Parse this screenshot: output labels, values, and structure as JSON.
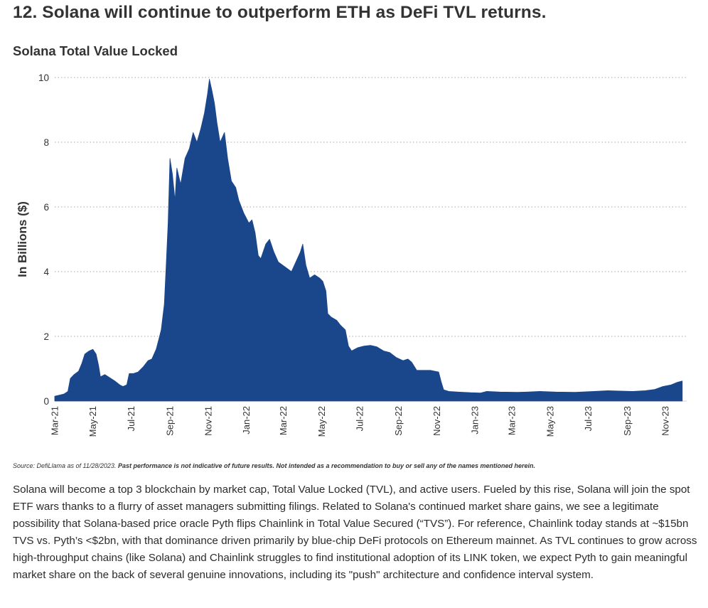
{
  "headline": "12. Solana will continue to outperform ETH as DeFi TVL returns.",
  "source_prefix": "Source: DefiLlama as of 11/28/2023. ",
  "source_disclaimer": "Past performance is not indicative of future results. Not intended as a recommendation to buy or sell any of the names mentioned herein.",
  "body": "Solana will become a top 3 blockchain by market cap, Total Value Locked (TVL), and active users. Fueled by this rise, Solana will join the spot ETF wars thanks to a flurry of asset managers submitting filings. Related to Solana's continued market share gains, we see a legitimate possibility that Solana-based price oracle Pyth flips Chainlink in Total Value Secured (“TVS”). For reference, Chainlink today stands at ~$15bn TVS vs. Pyth’s <$2bn, with that dominance driven primarily by blue-chip DeFi protocols on Ethereum mainnet. As TVL continues to grow across high-throughput chains (like Solana) and Chainlink struggles to find institutional adoption of its LINK token, we expect Pyth to gain meaningful market share on the back of several genuine innovations, including its \"push\" architecture and confidence interval system.",
  "colors": {
    "area": "#1a468c",
    "grid": "#a6a6a6",
    "text": "#333333"
  },
  "chart_data": {
    "type": "area",
    "title": "Solana Total Value Locked",
    "ylabel": "In Billions ($)",
    "xlabel": "",
    "ylim": [
      0,
      10
    ],
    "yticks": [
      0,
      2,
      4,
      6,
      8,
      10
    ],
    "grid": true,
    "xlim": [
      "2021-03-01",
      "2023-12-05"
    ],
    "xticks": [
      {
        "label": "Mar-21",
        "date": "2021-03-01"
      },
      {
        "label": "May-21",
        "date": "2021-05-01"
      },
      {
        "label": "Jul-21",
        "date": "2021-07-01"
      },
      {
        "label": "Sep-21",
        "date": "2021-09-01"
      },
      {
        "label": "Nov-21",
        "date": "2021-11-01"
      },
      {
        "label": "Jan-22",
        "date": "2022-01-01"
      },
      {
        "label": "Mar-22",
        "date": "2022-03-01"
      },
      {
        "label": "May-22",
        "date": "2022-05-01"
      },
      {
        "label": "Jul-22",
        "date": "2022-07-01"
      },
      {
        "label": "Sep-22",
        "date": "2022-09-01"
      },
      {
        "label": "Nov-22",
        "date": "2022-11-01"
      },
      {
        "label": "Jan-23",
        "date": "2023-01-01"
      },
      {
        "label": "Mar-23",
        "date": "2023-03-01"
      },
      {
        "label": "May-23",
        "date": "2023-05-01"
      },
      {
        "label": "Jul-23",
        "date": "2023-07-01"
      },
      {
        "label": "Sep-23",
        "date": "2023-09-01"
      },
      {
        "label": "Nov-23",
        "date": "2023-11-01"
      }
    ],
    "series": [
      {
        "points": [
          [
            "2021-03-01",
            0.15
          ],
          [
            "2021-03-08",
            0.18
          ],
          [
            "2021-03-16",
            0.22
          ],
          [
            "2021-03-22",
            0.3
          ],
          [
            "2021-03-26",
            0.7
          ],
          [
            "2021-04-01",
            0.82
          ],
          [
            "2021-04-08",
            0.92
          ],
          [
            "2021-04-13",
            1.15
          ],
          [
            "2021-04-18",
            1.45
          ],
          [
            "2021-04-25",
            1.55
          ],
          [
            "2021-05-01",
            1.6
          ],
          [
            "2021-05-06",
            1.45
          ],
          [
            "2021-05-10",
            1.1
          ],
          [
            "2021-05-13",
            0.75
          ],
          [
            "2021-05-20",
            0.82
          ],
          [
            "2021-05-28",
            0.72
          ],
          [
            "2021-06-05",
            0.62
          ],
          [
            "2021-06-13",
            0.5
          ],
          [
            "2021-06-18",
            0.45
          ],
          [
            "2021-06-24",
            0.5
          ],
          [
            "2021-06-28",
            0.85
          ],
          [
            "2021-07-05",
            0.85
          ],
          [
            "2021-07-12",
            0.9
          ],
          [
            "2021-07-20",
            1.05
          ],
          [
            "2021-07-28",
            1.25
          ],
          [
            "2021-08-03",
            1.3
          ],
          [
            "2021-08-10",
            1.6
          ],
          [
            "2021-08-14",
            1.9
          ],
          [
            "2021-08-18",
            2.2
          ],
          [
            "2021-08-23",
            3.0
          ],
          [
            "2021-08-26",
            4.2
          ],
          [
            "2021-08-29",
            5.5
          ],
          [
            "2021-09-01",
            7.5
          ],
          [
            "2021-09-05",
            7.0
          ],
          [
            "2021-09-09",
            6.2
          ],
          [
            "2021-09-12",
            7.2
          ],
          [
            "2021-09-18",
            6.7
          ],
          [
            "2021-09-25",
            7.5
          ],
          [
            "2021-10-02",
            7.8
          ],
          [
            "2021-10-08",
            8.3
          ],
          [
            "2021-10-14",
            8.0
          ],
          [
            "2021-10-20",
            8.4
          ],
          [
            "2021-10-26",
            8.9
          ],
          [
            "2021-10-31",
            9.5
          ],
          [
            "2021-11-03",
            9.95
          ],
          [
            "2021-11-07",
            9.6
          ],
          [
            "2021-11-11",
            9.2
          ],
          [
            "2021-11-15",
            8.6
          ],
          [
            "2021-11-20",
            8.0
          ],
          [
            "2021-11-27",
            8.3
          ],
          [
            "2021-12-02",
            7.5
          ],
          [
            "2021-12-08",
            6.8
          ],
          [
            "2021-12-15",
            6.6
          ],
          [
            "2021-12-20",
            6.2
          ],
          [
            "2021-12-28",
            5.8
          ],
          [
            "2022-01-05",
            5.5
          ],
          [
            "2022-01-10",
            5.6
          ],
          [
            "2022-01-15",
            5.2
          ],
          [
            "2022-01-20",
            4.5
          ],
          [
            "2022-01-24",
            4.4
          ],
          [
            "2022-02-01",
            4.85
          ],
          [
            "2022-02-07",
            5.0
          ],
          [
            "2022-02-14",
            4.6
          ],
          [
            "2022-02-21",
            4.3
          ],
          [
            "2022-02-28",
            4.2
          ],
          [
            "2022-03-07",
            4.1
          ],
          [
            "2022-03-14",
            4.0
          ],
          [
            "2022-03-21",
            4.3
          ],
          [
            "2022-03-28",
            4.6
          ],
          [
            "2022-04-01",
            4.85
          ],
          [
            "2022-04-06",
            4.2
          ],
          [
            "2022-04-12",
            3.8
          ],
          [
            "2022-04-20",
            3.9
          ],
          [
            "2022-04-28",
            3.8
          ],
          [
            "2022-05-03",
            3.7
          ],
          [
            "2022-05-08",
            3.4
          ],
          [
            "2022-05-11",
            2.7
          ],
          [
            "2022-05-16",
            2.6
          ],
          [
            "2022-05-25",
            2.5
          ],
          [
            "2022-05-31",
            2.35
          ],
          [
            "2022-06-08",
            2.2
          ],
          [
            "2022-06-13",
            1.7
          ],
          [
            "2022-06-18",
            1.55
          ],
          [
            "2022-06-28",
            1.65
          ],
          [
            "2022-07-08",
            1.7
          ],
          [
            "2022-07-18",
            1.72
          ],
          [
            "2022-07-28",
            1.68
          ],
          [
            "2022-08-08",
            1.55
          ],
          [
            "2022-08-18",
            1.5
          ],
          [
            "2022-08-28",
            1.35
          ],
          [
            "2022-09-08",
            1.25
          ],
          [
            "2022-09-16",
            1.3
          ],
          [
            "2022-09-22",
            1.2
          ],
          [
            "2022-09-30",
            0.95
          ],
          [
            "2022-10-12",
            0.95
          ],
          [
            "2022-10-22",
            0.95
          ],
          [
            "2022-11-04",
            0.9
          ],
          [
            "2022-11-08",
            0.6
          ],
          [
            "2022-11-12",
            0.35
          ],
          [
            "2022-11-20",
            0.3
          ],
          [
            "2022-12-05",
            0.28
          ],
          [
            "2022-12-25",
            0.26
          ],
          [
            "2023-01-10",
            0.25
          ],
          [
            "2023-01-20",
            0.3
          ],
          [
            "2023-02-10",
            0.28
          ],
          [
            "2023-03-10",
            0.27
          ],
          [
            "2023-03-25",
            0.28
          ],
          [
            "2023-04-15",
            0.3
          ],
          [
            "2023-05-10",
            0.28
          ],
          [
            "2023-06-10",
            0.27
          ],
          [
            "2023-07-10",
            0.3
          ],
          [
            "2023-08-01",
            0.32
          ],
          [
            "2023-08-20",
            0.31
          ],
          [
            "2023-09-10",
            0.3
          ],
          [
            "2023-09-30",
            0.32
          ],
          [
            "2023-10-15",
            0.36
          ],
          [
            "2023-10-28",
            0.45
          ],
          [
            "2023-11-10",
            0.5
          ],
          [
            "2023-11-20",
            0.58
          ],
          [
            "2023-11-28",
            0.62
          ]
        ]
      }
    ]
  }
}
